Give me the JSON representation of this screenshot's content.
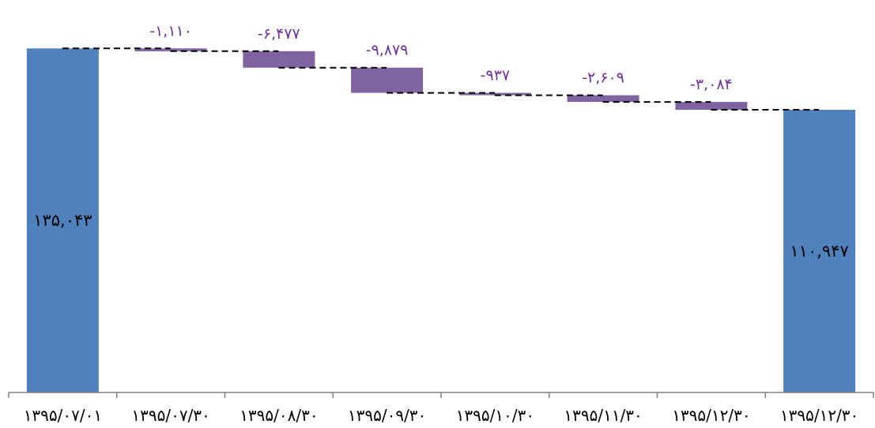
{
  "chart_data": {
    "type": "bar",
    "subtype": "waterfall",
    "categories": [
      "۱۳۹۵/۰۷/۰۱",
      "۱۳۹۵/۰۷/۳۰",
      "۱۳۹۵/۰۸/۳۰",
      "۱۳۹۵/۰۹/۳۰",
      "۱۳۹۵/۱۰/۳۰",
      "۱۳۹۵/۱۱/۳۰",
      "۱۳۹۵/۱۲/۳۰",
      "۱۳۹۵/۱۲/۳۰"
    ],
    "values": [
      135043,
      -1110,
      -6477,
      -9879,
      -937,
      -2609,
      -3084,
      110947
    ],
    "kinds": [
      "total",
      "delta",
      "delta",
      "delta",
      "delta",
      "delta",
      "delta",
      "total"
    ],
    "value_labels": [
      "۱۳۵,۰۴۳",
      "-۱,۱۱۰",
      "-۶,۴۷۷",
      "-۹,۸۷۹",
      "-۹۳۷",
      "-۲,۶۰۹",
      "-۳,۰۸۴",
      "۱۱۰,۹۴۷"
    ],
    "ylim": [
      0,
      150000
    ],
    "connectors": "dashed",
    "grid": false,
    "legend": "none",
    "colors": {
      "total": "#4f81bd",
      "delta": "#8064a2",
      "delta_label": "#7030a0",
      "axis": "#808080"
    }
  }
}
